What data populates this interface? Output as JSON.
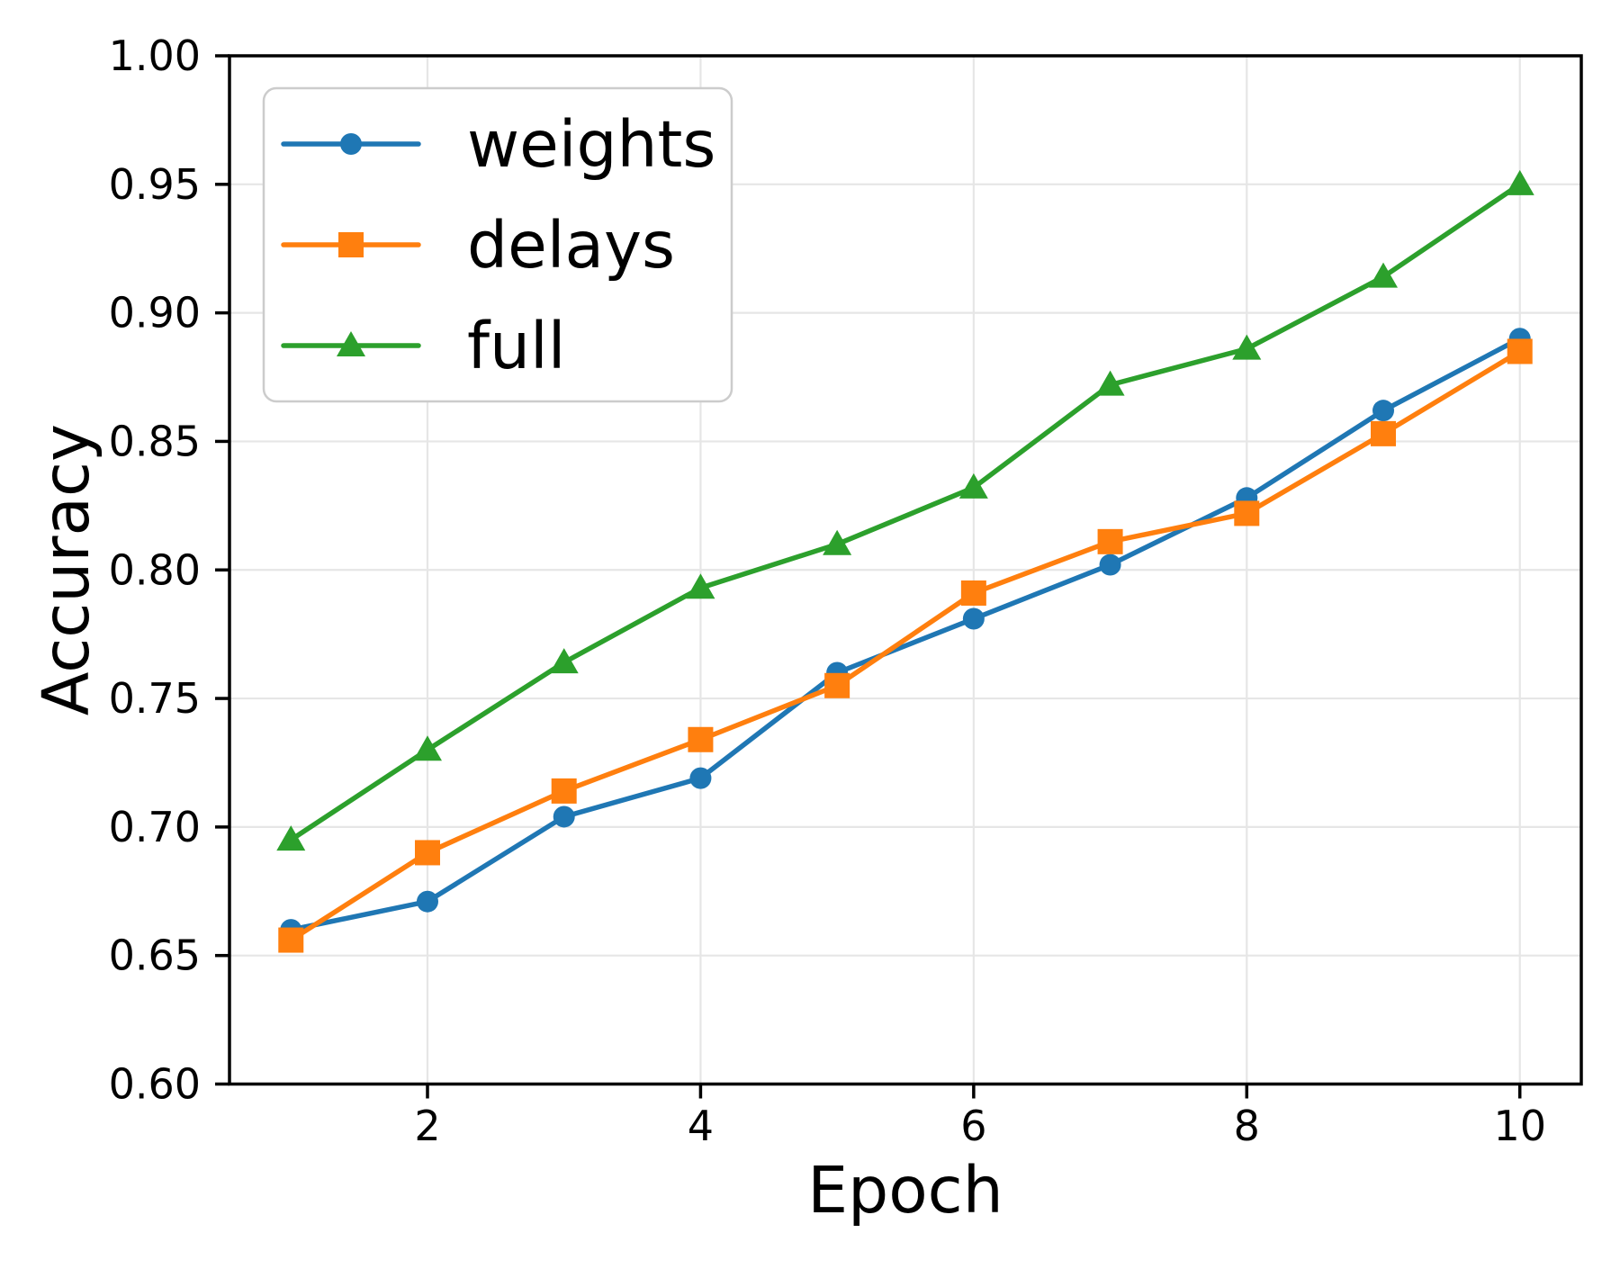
{
  "chart_data": {
    "type": "line",
    "title": "",
    "xlabel": "Epoch",
    "ylabel": "Accuracy",
    "x": [
      1,
      2,
      3,
      4,
      5,
      6,
      7,
      8,
      9,
      10
    ],
    "series": [
      {
        "name": "weights",
        "color": "#1f77b4",
        "marker": "circle",
        "values": [
          0.66,
          0.671,
          0.704,
          0.719,
          0.76,
          0.781,
          0.802,
          0.828,
          0.862,
          0.89
        ]
      },
      {
        "name": "delays",
        "color": "#ff7f0e",
        "marker": "square",
        "values": [
          0.656,
          0.69,
          0.714,
          0.734,
          0.755,
          0.791,
          0.811,
          0.822,
          0.853,
          0.885
        ]
      },
      {
        "name": "full",
        "color": "#2ca02c",
        "marker": "triangle",
        "values": [
          0.695,
          0.73,
          0.764,
          0.793,
          0.81,
          0.832,
          0.872,
          0.886,
          0.914,
          0.95
        ]
      }
    ],
    "xlim": [
      0.55,
      10.45
    ],
    "ylim": [
      0.6,
      1.0
    ],
    "xticks": [
      2,
      4,
      6,
      8,
      10
    ],
    "xtick_labels": [
      "2",
      "4",
      "6",
      "8",
      "10"
    ],
    "yticks": [
      0.6,
      0.65,
      0.7,
      0.75,
      0.8,
      0.85,
      0.9,
      0.95,
      1.0
    ],
    "ytick_labels": [
      "0.60",
      "0.65",
      "0.70",
      "0.75",
      "0.80",
      "0.85",
      "0.90",
      "0.95",
      "1.00"
    ],
    "grid": true,
    "grid_color": "#e6e6e6",
    "spine_color": "#000000",
    "background": "#ffffff",
    "legend": {
      "position": "upper left",
      "entries": [
        "weights",
        "delays",
        "full"
      ]
    }
  }
}
